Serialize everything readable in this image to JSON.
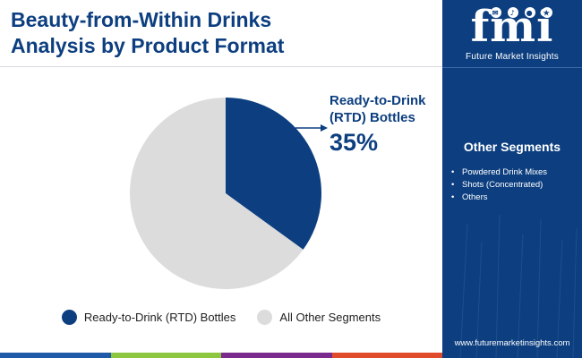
{
  "header": {
    "title_line1": "Beauty-from-Within Drinks",
    "title_line2": "Analysis by Product Format"
  },
  "chart_data": {
    "type": "pie",
    "slices": [
      {
        "label": "Ready-to-Drink (RTD) Bottles",
        "value": 35,
        "color": "#0d3f80"
      },
      {
        "label": "All Other Segments",
        "value": 65,
        "color": "#dcdcdc"
      }
    ],
    "start_angle_deg": 0,
    "direction": "clockwise",
    "callout": {
      "label_line1": "Ready-to-Drink",
      "label_line2": "(RTD) Bottles",
      "value_text": "35%"
    },
    "legend": {
      "placement": "bottom",
      "entries": [
        "Ready-to-Drink (RTD) Bottles",
        "All Other Segments"
      ]
    }
  },
  "sidebar": {
    "logo_letters": "fmi",
    "logo_name": "Future Market Insights",
    "heading": "Other Segments",
    "items": [
      "Powdered Drink Mixes",
      "Shots (Concentrated)",
      "Others"
    ],
    "url": "www.futuremarketinsights.com"
  },
  "colors": {
    "primary": "#0d3f80",
    "other": "#dcdcdc",
    "bottom_bar": [
      "#1f5aa8",
      "#8dc63f",
      "#7a2a8c",
      "#e04b2c"
    ]
  }
}
